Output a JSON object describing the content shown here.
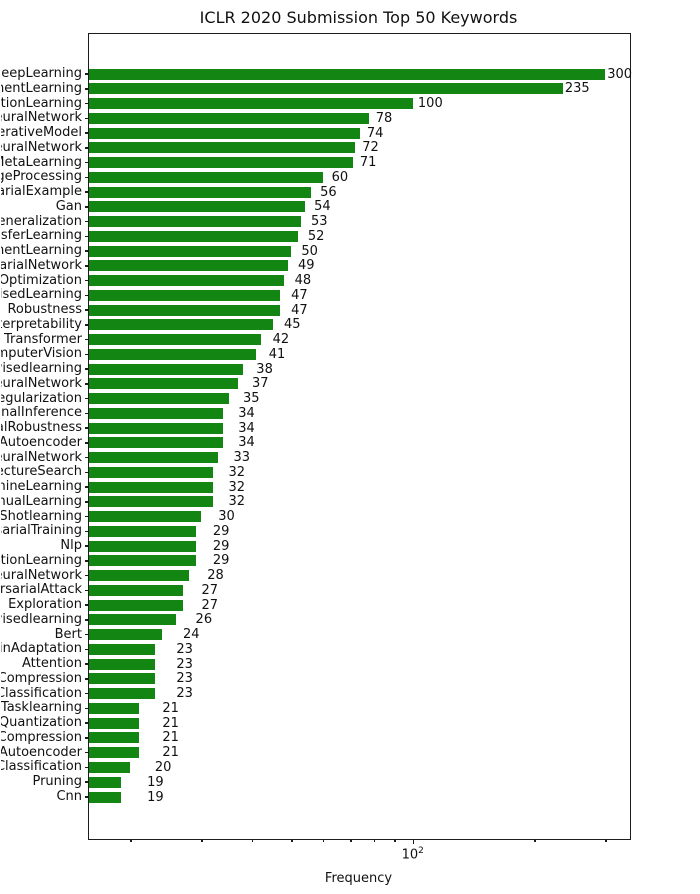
{
  "title": "ICLR 2020 Submission Top 50 Keywords",
  "xlabel": "Frequency",
  "chart_data": {
    "type": "bar",
    "orientation": "horizontal",
    "title": "ICLR 2020 Submission Top 50 Keywords",
    "xlabel": "Frequency",
    "xscale": "log",
    "xlim": [
      15.8,
      345
    ],
    "grid": false,
    "legend": "none",
    "bar_color": "#128512",
    "x_major_ticks": [
      {
        "value": 100,
        "base": "10",
        "exponent": "2"
      }
    ],
    "x_minor_ticks": [
      20,
      30,
      40,
      50,
      60,
      70,
      80,
      90,
      200,
      300
    ],
    "categories_visible_truncated": [
      "DeepLearning",
      "mentLearning",
      "ationLearning",
      "euralNetwork",
      "erativeModel",
      "euralNetwork",
      "MetaLearning",
      "geProcessing",
      "arialExample",
      "Gan",
      "eneralization",
      "sferLearning",
      "mentLearning",
      "arialNetwork",
      "Optimization",
      "isedLearning",
      "Robustness",
      "terpretability",
      "Transformer",
      "mputerVision",
      "visedlearning",
      "euralNetwork",
      "egularization",
      "onalInference",
      "alRobustness",
      "Autoencoder",
      "euralNetwork",
      "ectureSearch",
      "hineLearning",
      "nualLearning",
      "Shotlearning",
      "sarialTraining",
      "Nlp",
      "ationLearning",
      "euralNetwork",
      "rsarialAttack",
      "Exploration",
      "visedlearning",
      "Bert",
      "inAdaptation",
      "Attention",
      "Compression",
      "Classification",
      "Tasklearning",
      "Quantization",
      "Compression",
      "Autoencoder",
      "Classification",
      "Pruning",
      "Cnn"
    ],
    "values": [
      300,
      235,
      100,
      78,
      74,
      72,
      71,
      60,
      56,
      54,
      53,
      52,
      50,
      49,
      48,
      47,
      47,
      45,
      42,
      41,
      38,
      37,
      35,
      34,
      34,
      34,
      33,
      32,
      32,
      32,
      30,
      29,
      29,
      29,
      28,
      27,
      27,
      26,
      24,
      23,
      23,
      23,
      23,
      21,
      21,
      21,
      21,
      20,
      19,
      19
    ]
  }
}
